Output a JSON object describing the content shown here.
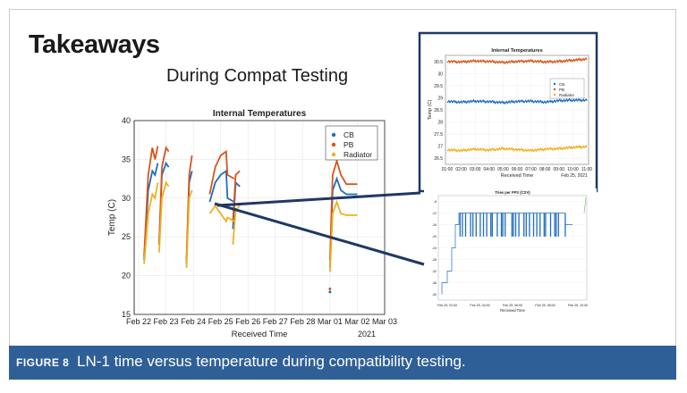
{
  "slide": {
    "title": "Takeaways",
    "subtitle": "During Compat Testing"
  },
  "caption": {
    "label": "FIGURE 8",
    "text": "LN-1 time versus temperature during compatibility testing."
  },
  "colors": {
    "caption_bg": "#2f5f97",
    "cb": "#1f6cc0",
    "pb": "#d95319",
    "radiator": "#edb120",
    "callout": "#1f3864"
  },
  "chart_data": [
    {
      "type": "scatter",
      "title": "Internal Temperatures",
      "xlabel": "Received Time",
      "ylabel": "Temp (C)",
      "x_ticks": [
        "Feb 22",
        "Feb 23",
        "Feb 24",
        "Feb 25",
        "Feb 26",
        "Feb 27",
        "Feb 28",
        "Mar 01",
        "Mar 02",
        "Mar 03"
      ],
      "x_year": "2021",
      "ylim": [
        15,
        40
      ],
      "y_ticks": [
        "15",
        "20",
        "25",
        "30",
        "35",
        "40"
      ],
      "legend": [
        "CB",
        "PB",
        "Radiator"
      ],
      "legend_position": "top-right",
      "grid": true,
      "series": [
        {
          "name": "CB",
          "segments": [
            [
              [
                0.2,
                22
              ],
              [
                0.35,
                31
              ],
              [
                0.5,
                33.5
              ],
              [
                0.6,
                33
              ],
              [
                0.7,
                34.5
              ]
            ],
            [
              [
                0.75,
                24
              ],
              [
                0.85,
                33
              ],
              [
                1.0,
                34.5
              ],
              [
                1.1,
                34
              ]
            ],
            [
              [
                1.75,
                21.5
              ],
              [
                1.85,
                32
              ],
              [
                1.95,
                33.5
              ]
            ],
            [
              [
                2.6,
                29.5
              ],
              [
                2.8,
                32
              ],
              [
                3.0,
                33
              ],
              [
                3.2,
                33.5
              ],
              [
                3.25,
                30
              ],
              [
                3.5,
                29.5
              ]
            ],
            [
              [
                3.45,
                26
              ],
              [
                3.55,
                32
              ],
              [
                3.7,
                31.5
              ]
            ],
            [
              [
                7.0,
                21
              ],
              [
                7.1,
                31
              ],
              [
                7.25,
                32.5
              ],
              [
                7.4,
                31
              ],
              [
                7.6,
                30.5
              ],
              [
                8.0,
                30.5
              ]
            ]
          ]
        },
        {
          "name": "PB",
          "segments": [
            [
              [
                0.2,
                22.5
              ],
              [
                0.35,
                33
              ],
              [
                0.5,
                36.5
              ],
              [
                0.6,
                35
              ],
              [
                0.7,
                36.7
              ]
            ],
            [
              [
                0.75,
                24
              ],
              [
                0.85,
                34
              ],
              [
                1.0,
                36.5
              ],
              [
                1.1,
                36
              ]
            ],
            [
              [
                1.75,
                22
              ],
              [
                1.85,
                33
              ],
              [
                1.95,
                35.5
              ]
            ],
            [
              [
                2.6,
                30.5
              ],
              [
                2.8,
                34
              ],
              [
                3.0,
                35.5
              ],
              [
                3.2,
                36
              ],
              [
                3.25,
                33
              ],
              [
                3.5,
                32.5
              ]
            ],
            [
              [
                3.45,
                27
              ],
              [
                3.55,
                33
              ],
              [
                3.7,
                33.5
              ]
            ],
            [
              [
                7.0,
                22
              ],
              [
                7.1,
                33
              ],
              [
                7.25,
                34.8
              ],
              [
                7.4,
                33
              ],
              [
                7.6,
                31.8
              ],
              [
                8.0,
                31.8
              ]
            ]
          ]
        },
        {
          "name": "Radiator",
          "segments": [
            [
              [
                0.2,
                21.5
              ],
              [
                0.35,
                28
              ],
              [
                0.5,
                30.5
              ],
              [
                0.6,
                30
              ],
              [
                0.7,
                32
              ]
            ],
            [
              [
                0.75,
                23
              ],
              [
                0.85,
                30
              ],
              [
                1.0,
                32
              ],
              [
                1.1,
                31.5
              ]
            ],
            [
              [
                1.75,
                21
              ],
              [
                1.85,
                30
              ],
              [
                1.95,
                31
              ]
            ],
            [
              [
                2.6,
                28
              ],
              [
                2.8,
                29
              ],
              [
                3.0,
                28
              ],
              [
                3.2,
                27
              ],
              [
                3.25,
                27.5
              ],
              [
                3.5,
                27
              ]
            ],
            [
              [
                3.45,
                24
              ],
              [
                3.55,
                28.5
              ],
              [
                3.7,
                29
              ]
            ],
            [
              [
                7.0,
                20.5
              ],
              [
                7.1,
                28
              ],
              [
                7.25,
                29.5
              ],
              [
                7.4,
                28
              ],
              [
                7.6,
                27.8
              ],
              [
                8.0,
                27.8
              ]
            ]
          ]
        }
      ]
    },
    {
      "type": "scatter",
      "title": "Internal Temperatures",
      "xlabel": "Received Time",
      "ylabel": "Temp (C)",
      "x_ticks": [
        "01:00",
        "02:00",
        "03:00",
        "04:00",
        "05:00",
        "06:00",
        "07:00",
        "08:00",
        "09:00",
        "10:00",
        "11:00"
      ],
      "x_date": "Feb 25, 2021",
      "ylim": [
        26.25,
        30.75
      ],
      "y_ticks": [
        "26.5",
        "27",
        "27.5",
        "28",
        "28.5",
        "29",
        "29.5",
        "30",
        "30.5"
      ],
      "legend": [
        "CB",
        "PB",
        "Radiator"
      ],
      "legend_position": "center-right",
      "grid": true,
      "series": [
        {
          "name": "PB",
          "values": [
            30.5,
            30.48,
            30.52,
            30.5,
            30.46,
            30.5,
            30.52,
            30.48,
            30.5,
            30.55,
            30.6
          ]
        },
        {
          "name": "CB",
          "values": [
            28.85,
            28.82,
            28.86,
            28.84,
            28.8,
            28.85,
            28.86,
            28.82,
            28.88,
            28.9,
            28.9
          ]
        },
        {
          "name": "Radiator",
          "values": [
            26.85,
            26.82,
            26.88,
            26.84,
            26.9,
            26.86,
            26.82,
            26.88,
            26.9,
            26.95,
            26.98
          ]
        }
      ]
    },
    {
      "type": "line",
      "title": "Tries per FPS (CSV)",
      "xlabel": "Received Time",
      "x_ticks": [
        "Feb 25, 02:00",
        "Feb 25, 04:00",
        "Feb 25, 06:00",
        "Feb 25, 08:00",
        "Feb 25, 10:00"
      ],
      "y_ticks": [
        "-8",
        "-12",
        "-16",
        "-20",
        "-24",
        "-28",
        "-32",
        "-36",
        "-40"
      ],
      "ylim": [
        -42,
        -6
      ],
      "note": "blocky step signal oscillating between about -12 and -20"
    }
  ]
}
